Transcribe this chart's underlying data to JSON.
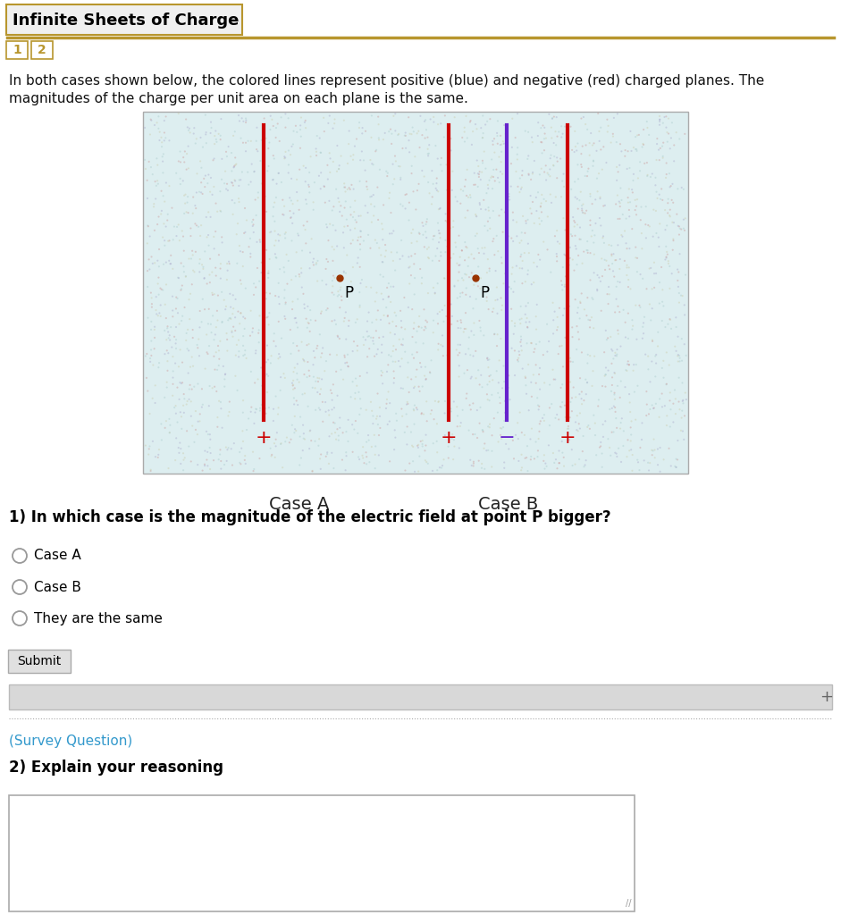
{
  "title": "Infinite Sheets of Charge",
  "title_color": "#000000",
  "title_bg": "#f0f0f0",
  "title_border": "#b8962e",
  "tab_color": "#b8962e",
  "tab_bg": "#ffffff",
  "description_line1": "In both cases shown below, the colored lines represent positive (blue) and negative (red) charged planes. The",
  "description_line2": "magnitudes of the charge per unit area on each plane is the same.",
  "case_a_label": "Case A",
  "case_b_label": "Case B",
  "point_label": "P",
  "question1": "1) In which case is the magnitude of the electric field at point P bigger?",
  "radio_options": [
    "Case A",
    "Case B",
    "They are the same"
  ],
  "submit_label": "Submit",
  "survey_label": "(Survey Question)",
  "question2": "2) Explain your reasoning",
  "survey_color": "#3399cc",
  "bg_color": "#ffffff",
  "diagram_bg": "#ddeef0",
  "red_color": "#cc0000",
  "blue_color": "#6622cc",
  "dot_color": "#993300",
  "noise_color": "#99cccc",
  "noise_alpha": 0.3,
  "title_fs": 13,
  "desc_fs": 11,
  "q1_fs": 12,
  "radio_fs": 11,
  "submit_fs": 10,
  "survey_fs": 11,
  "q2_fs": 12,
  "case_label_fs": 14
}
